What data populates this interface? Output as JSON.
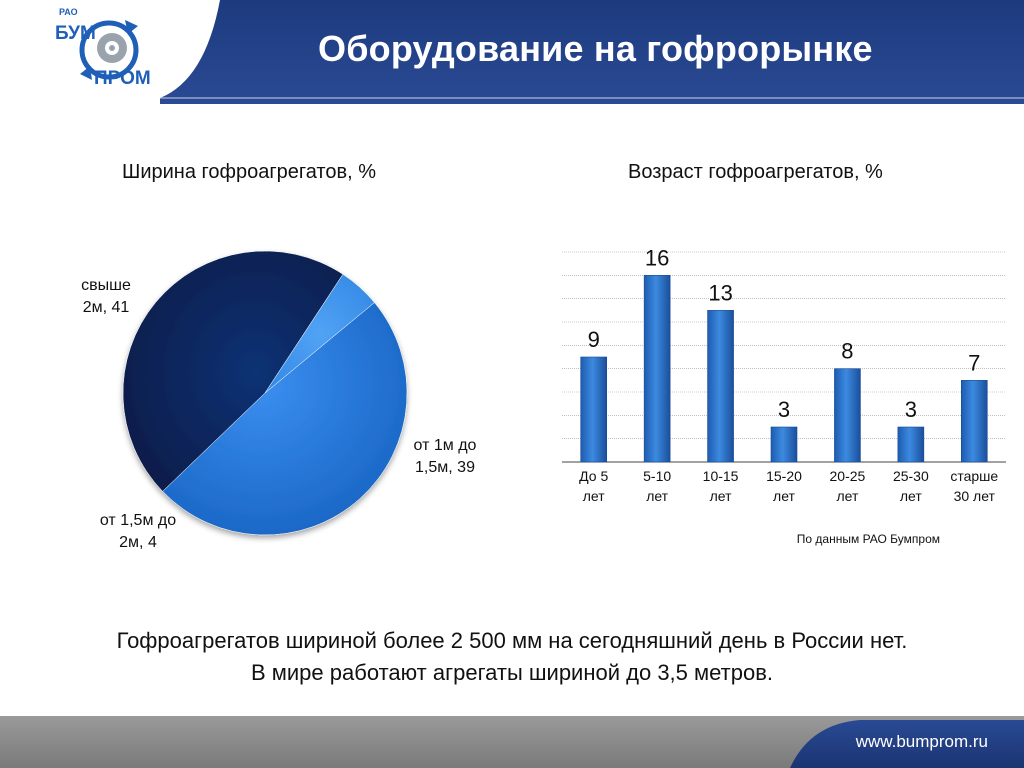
{
  "header": {
    "title": "Оборудование на гофрорынке"
  },
  "logo": {
    "text_small": "РАО",
    "text_top": "БУМ",
    "text_bottom": "ПРОМ"
  },
  "colors": {
    "header_blue": "#233e82",
    "footer_grey": "#8a8a8a",
    "pie_light": "#1e73d4",
    "pie_dark": "#0a2456",
    "pie_small": "#3a90ea",
    "bar_fill": "#2e79cf"
  },
  "chart_data": [
    {
      "type": "pie",
      "title": "Ширина гофроагрегатов, %",
      "slices": [
        {
          "label": "свыше 2м, 41",
          "name": "свыше 2м",
          "value": 41
        },
        {
          "label": "от 1м до 1,5м, 39",
          "name": "от 1м до 1,5м",
          "value": 39
        },
        {
          "label": "от 1,5м до 2м, 4",
          "name": "от 1,5м до 2м",
          "value": 4
        }
      ],
      "label_lines": [
        [
          "свыше",
          "2м, 41"
        ],
        [
          "от 1м до",
          "1,5м, 39"
        ],
        [
          "от 1,5м до",
          "2м, 4"
        ]
      ]
    },
    {
      "type": "bar",
      "title": "Возраст гофроагрегатов, %",
      "categories": [
        "До 5 лет",
        "5-10 лет",
        "10-15 лет",
        "15-20 лет",
        "20-25 лет",
        "25-30 лет",
        "старше 30 лет"
      ],
      "category_lines": [
        [
          "До 5",
          "лет"
        ],
        [
          "5-10",
          "лет"
        ],
        [
          "10-15",
          "лет"
        ],
        [
          "15-20",
          "лет"
        ],
        [
          "20-25",
          "лет"
        ],
        [
          "25-30",
          "лет"
        ],
        [
          "старше",
          "30 лет"
        ]
      ],
      "values": [
        9,
        16,
        13,
        3,
        8,
        3,
        7
      ],
      "ylim": [
        0,
        18
      ],
      "grid": true,
      "data_labels": true
    }
  ],
  "source_note": "По данным РАО Бумпром",
  "summary": [
    "Гофроагрегатов шириной более 2 500 мм на сегодняшний день в России нет.",
    "В мире работают агрегаты шириной до 3,5 метров."
  ],
  "footer": {
    "url": "www.bumprom.ru"
  }
}
